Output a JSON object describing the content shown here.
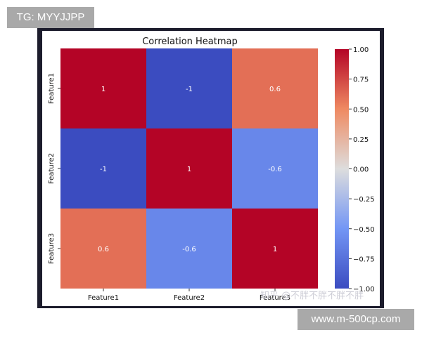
{
  "overlays": {
    "top_tag": "TG: MYYJJPP",
    "bottom_tag": "www.m-500cp.com",
    "watermark": "知乎 @不胖不胖不胖不胖"
  },
  "chart_data": {
    "type": "heatmap",
    "title": "Correlation Heatmap",
    "rows": [
      "Feature1",
      "Feature2",
      "Feature3"
    ],
    "cols": [
      "Feature1",
      "Feature2",
      "Feature3"
    ],
    "values": [
      [
        1,
        -1,
        0.6
      ],
      [
        -1,
        1,
        -0.6
      ],
      [
        0.6,
        -0.6,
        1
      ]
    ],
    "cell_labels": [
      [
        "1",
        "-1",
        "0.6"
      ],
      [
        "-1",
        "1",
        "-0.6"
      ],
      [
        "0.6",
        "-0.6",
        "1"
      ]
    ],
    "colormap": "coolwarm",
    "colors": {
      "low": "#3b4cc0",
      "mid": "#dddddd",
      "high": "#b40426"
    },
    "colorbar": {
      "range": [
        -1,
        1
      ],
      "ticks": [
        1,
        0.75,
        0.5,
        0.25,
        0,
        -0.25,
        -0.5,
        -0.75,
        -1
      ],
      "tick_labels": [
        "1.00",
        "0.75",
        "0.50",
        "0.25",
        "0.00",
        "−0.25",
        "−0.50",
        "−0.75",
        "−1.00"
      ]
    }
  }
}
